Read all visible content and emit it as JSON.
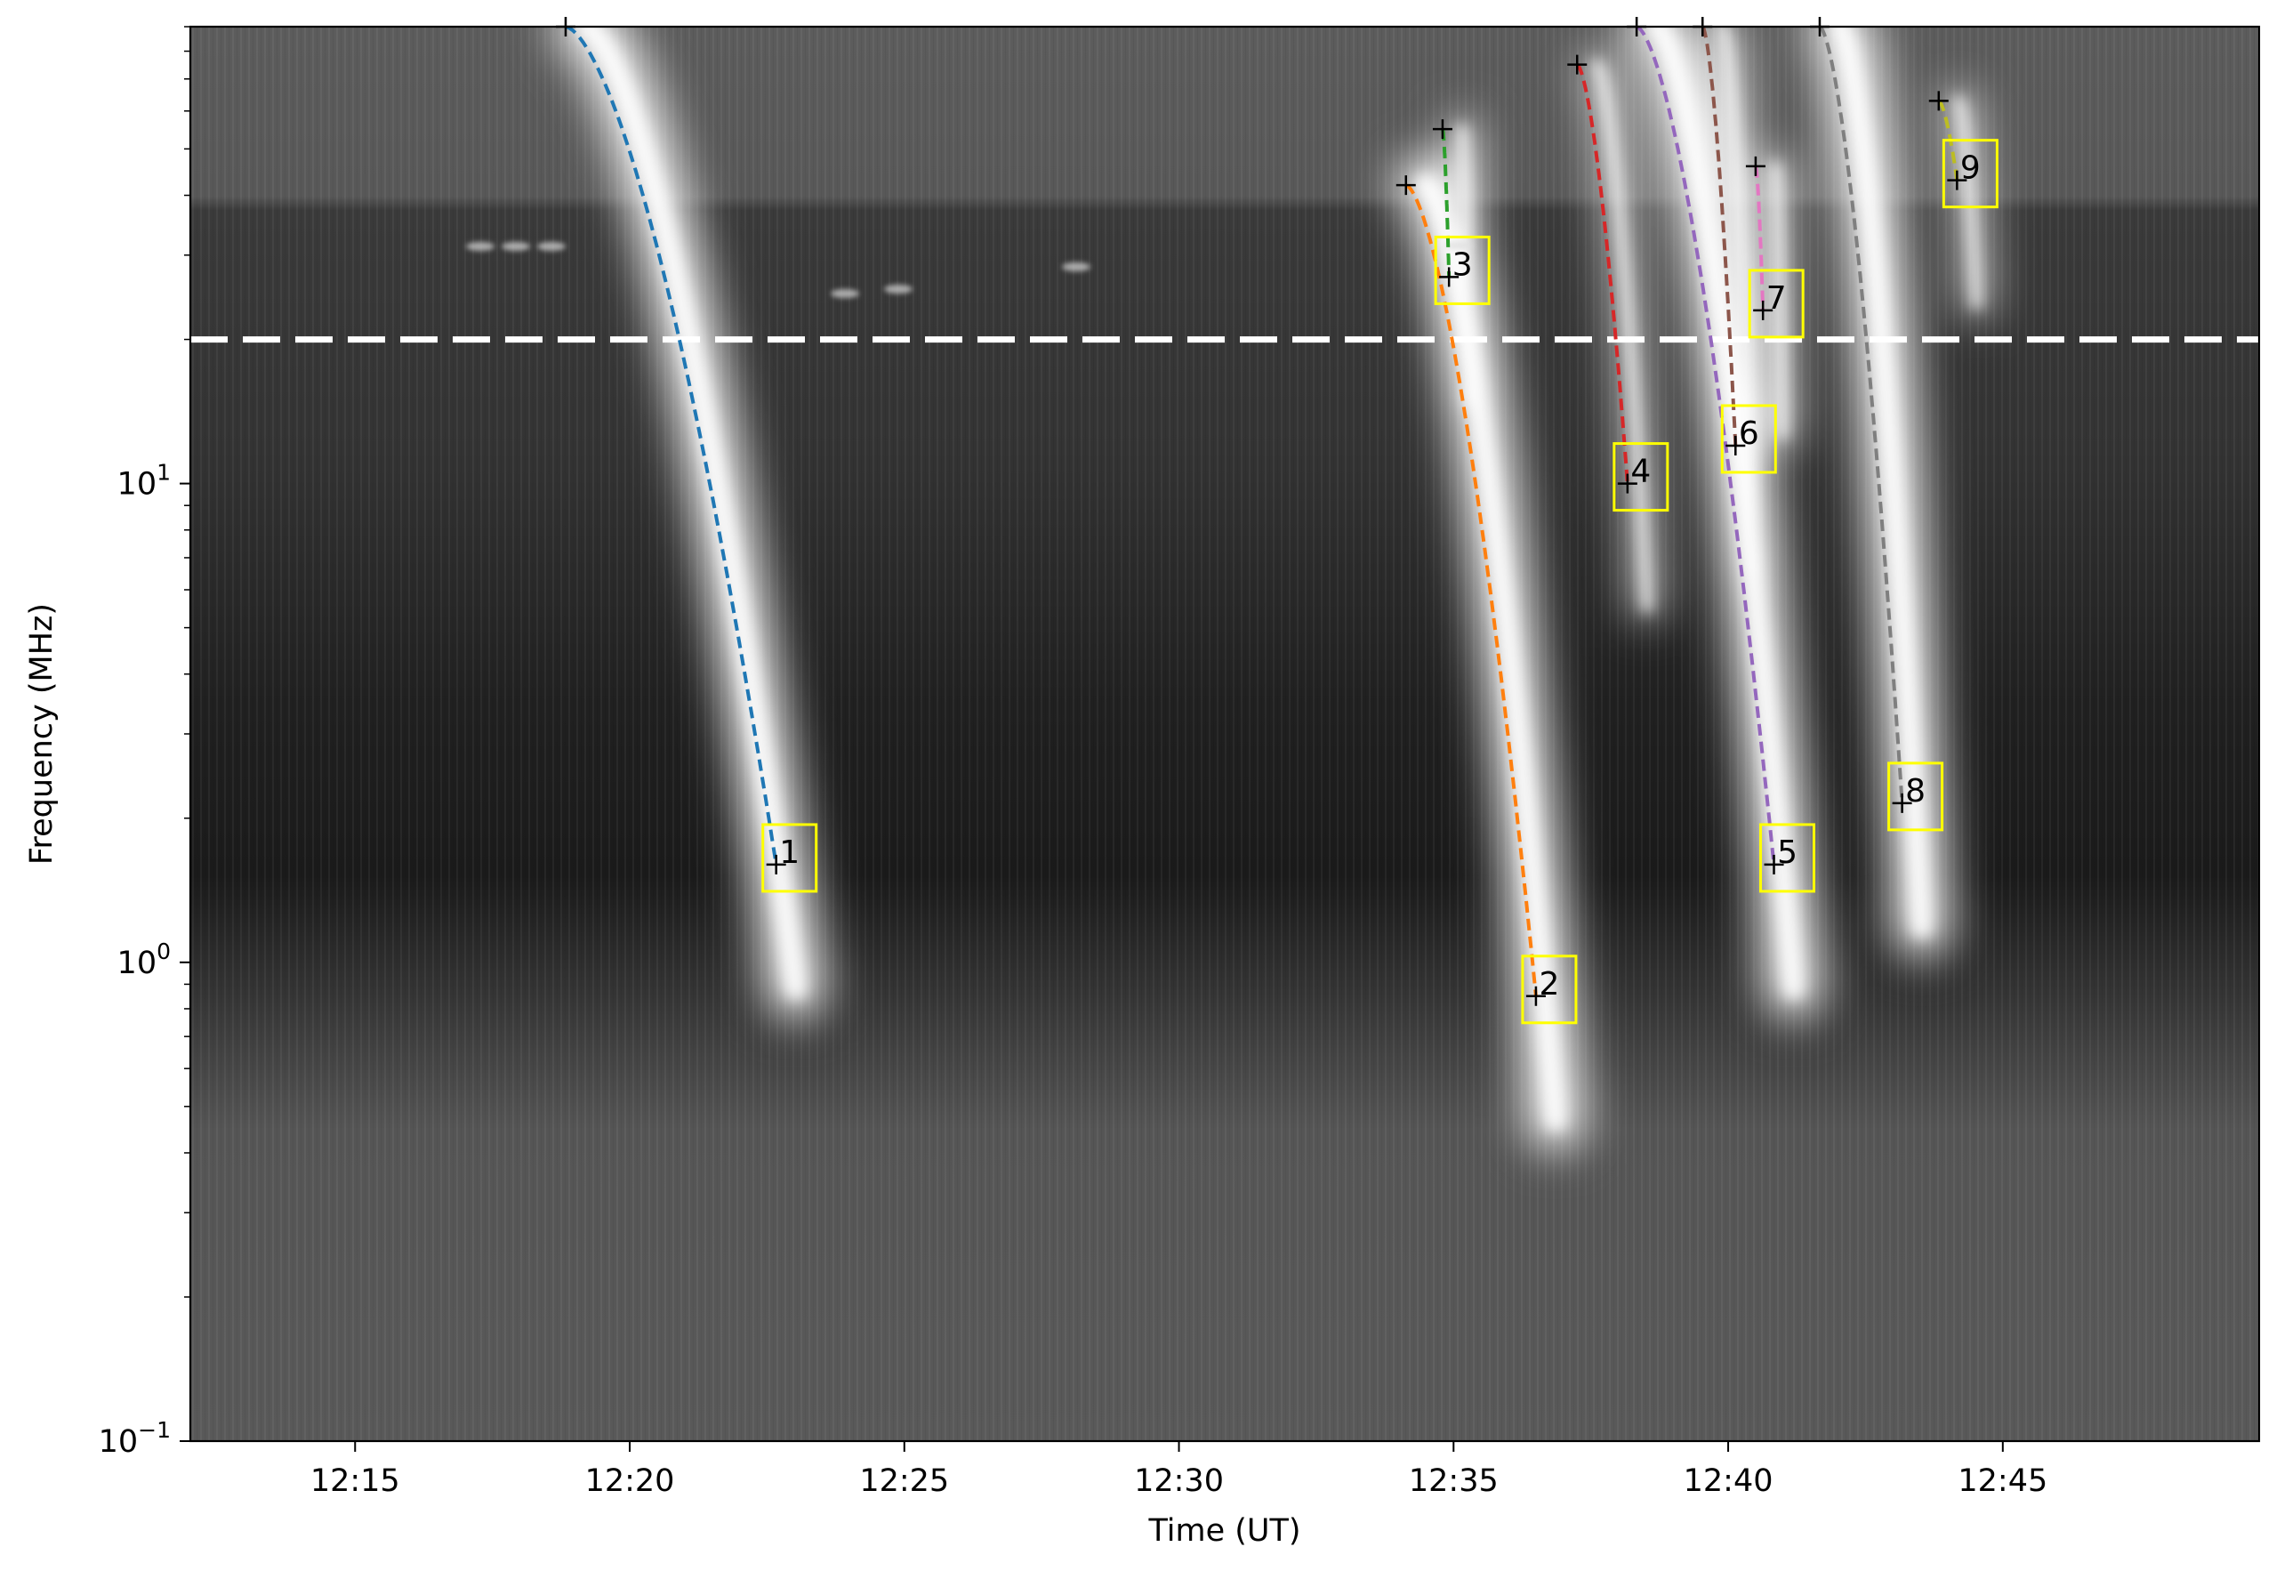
{
  "chart_data": {
    "type": "scatter",
    "title": "",
    "xlabel": "Time (UT)",
    "ylabel": "Frequency (MHz)",
    "xaxis": {
      "scale": "time",
      "range": [
        "12:12",
        "12:49:40"
      ],
      "ticks": [
        "12:15",
        "12:20",
        "12:25",
        "12:30",
        "12:35",
        "12:40",
        "12:45"
      ]
    },
    "yaxis": {
      "scale": "log",
      "range": [
        0.1,
        90
      ],
      "ticks": [
        {
          "value": 1,
          "base": "10",
          "exp": "0"
        },
        {
          "value": 10,
          "base": "10",
          "exp": "1"
        },
        {
          "value": 0.1,
          "base": "10",
          "exp": "−1"
        }
      ]
    },
    "threshold_line": {
      "frequency_mhz": 20,
      "style": "dashed",
      "color": "#ffffff"
    },
    "background": "grayscale dynamic spectrum",
    "grid": false,
    "legend": "none",
    "series": [
      {
        "label": "1",
        "color": "#1f77b4",
        "start": {
          "time": "12:18:50",
          "freq": 90
        },
        "end": {
          "time": "12:22:40",
          "freq": 1.6
        }
      },
      {
        "label": "2",
        "color": "#ff7f0e",
        "start": {
          "time": "12:34:08",
          "freq": 42
        },
        "end": {
          "time": "12:36:30",
          "freq": 0.85
        }
      },
      {
        "label": "3",
        "color": "#2ca02c",
        "start": {
          "time": "12:34:48",
          "freq": 55
        },
        "end": {
          "time": "12:34:55",
          "freq": 27
        }
      },
      {
        "label": "4",
        "color": "#d62728",
        "start": {
          "time": "12:37:15",
          "freq": 75
        },
        "end": {
          "time": "12:38:10",
          "freq": 10
        }
      },
      {
        "label": "5",
        "color": "#9467bd",
        "start": {
          "time": "12:38:20",
          "freq": 90
        },
        "end": {
          "time": "12:40:50",
          "freq": 1.6
        }
      },
      {
        "label": "6",
        "color": "#8c564b",
        "start": {
          "time": "12:39:32",
          "freq": 90
        },
        "end": {
          "time": "12:40:08",
          "freq": 12
        }
      },
      {
        "label": "7",
        "color": "#e377c2",
        "start": {
          "time": "12:40:30",
          "freq": 46
        },
        "end": {
          "time": "12:40:38",
          "freq": 23
        }
      },
      {
        "label": "8",
        "color": "#7f7f7f",
        "start": {
          "time": "12:41:40",
          "freq": 90
        },
        "end": {
          "time": "12:43:10",
          "freq": 2.15
        }
      },
      {
        "label": "9",
        "color": "#bcbd22",
        "start": {
          "time": "12:43:50",
          "freq": 63
        },
        "end": {
          "time": "12:44:10",
          "freq": 43
        }
      }
    ]
  }
}
